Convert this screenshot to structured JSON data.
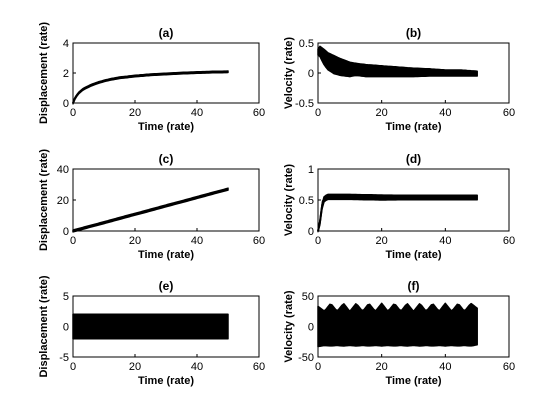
{
  "chart_data": [
    {
      "type": "line",
      "title": "(a)",
      "xlabel": "Time (rate)",
      "ylabel": "Displacement (rate)",
      "xlim": [
        0,
        60
      ],
      "ylim": [
        0,
        4
      ],
      "xticks": [
        "0",
        "20",
        "40",
        "60"
      ],
      "yticks": [
        "0",
        "2",
        "4"
      ],
      "grid": false,
      "series": [
        {
          "x": [
            0,
            0.5,
            1,
            2,
            3,
            4,
            5,
            6,
            8,
            10,
            12,
            15,
            20,
            25,
            30,
            35,
            40,
            45,
            50
          ],
          "y": [
            0,
            0.25,
            0.45,
            0.7,
            0.88,
            1.0,
            1.1,
            1.2,
            1.35,
            1.47,
            1.57,
            1.68,
            1.8,
            1.88,
            1.94,
            1.99,
            2.03,
            2.06,
            2.08
          ],
          "band": 0.05
        }
      ]
    },
    {
      "type": "line",
      "title": "(b)",
      "xlabel": "Time (rate)",
      "ylabel": "Velocity (rate)",
      "xlim": [
        0,
        60
      ],
      "ylim": [
        -0.5,
        0.5
      ],
      "xticks": [
        "0",
        "20",
        "40",
        "60"
      ],
      "yticks": [
        "-0.5",
        "0",
        "0.5"
      ],
      "grid": false,
      "series": [
        {
          "x": [
            0,
            0.5,
            1,
            2,
            3,
            5,
            7,
            10,
            12,
            15,
            20,
            25,
            30,
            35,
            40,
            45,
            50
          ],
          "y": [
            0.35,
            0.37,
            0.33,
            0.26,
            0.2,
            0.14,
            0.1,
            0.06,
            0.06,
            0.04,
            0.03,
            0.02,
            0.01,
            0.01,
            0.0,
            0.0,
            -0.01
          ],
          "band": [
            0.05,
            0.08,
            0.1,
            0.13,
            0.14,
            0.15,
            0.14,
            0.12,
            0.1,
            0.1,
            0.09,
            0.08,
            0.07,
            0.06,
            0.05,
            0.05,
            0.04
          ]
        }
      ]
    },
    {
      "type": "line",
      "title": "(c)",
      "xlabel": "Time (rate)",
      "ylabel": "Displacement (rate)",
      "xlim": [
        0,
        60
      ],
      "ylim": [
        0,
        40
      ],
      "xticks": [
        "0",
        "20",
        "40",
        "60"
      ],
      "yticks": [
        "0",
        "20",
        "40"
      ],
      "grid": false,
      "series": [
        {
          "x": [
            0,
            10,
            20,
            30,
            40,
            50
          ],
          "y": [
            0,
            5.4,
            10.8,
            16.2,
            21.6,
            27
          ],
          "band": 0.6
        }
      ]
    },
    {
      "type": "line",
      "title": "(d)",
      "xlabel": "Time (rate)",
      "ylabel": "Velocity (rate)",
      "xlim": [
        0,
        60
      ],
      "ylim": [
        0,
        1
      ],
      "xticks": [
        "0",
        "20",
        "40",
        "60"
      ],
      "yticks": [
        "0",
        "0.5",
        "1"
      ],
      "grid": false,
      "series": [
        {
          "x": [
            0,
            0.5,
            1,
            1.5,
            2,
            3,
            5,
            10,
            20,
            30,
            40,
            50
          ],
          "y": [
            0,
            0.1,
            0.3,
            0.48,
            0.52,
            0.55,
            0.55,
            0.55,
            0.54,
            0.54,
            0.54,
            0.54
          ],
          "band": [
            0.01,
            0.02,
            0.03,
            0.04,
            0.04,
            0.04,
            0.04,
            0.04,
            0.04,
            0.035,
            0.035,
            0.035
          ]
        }
      ]
    },
    {
      "type": "line",
      "title": "(e)",
      "xlabel": "Time (rate)",
      "ylabel": "Displacement (rate)",
      "xlim": [
        0,
        60
      ],
      "ylim": [
        -5,
        5
      ],
      "xticks": [
        "0",
        "20",
        "40",
        "60"
      ],
      "yticks": [
        "-5",
        "0",
        "5"
      ],
      "grid": false,
      "series": [
        {
          "x": [
            0,
            50
          ],
          "y": [
            0,
            0
          ],
          "band": 2
        }
      ]
    },
    {
      "type": "line",
      "title": "(f)",
      "xlabel": "Time (rate)",
      "ylabel": "Velocity (rate)",
      "xlim": [
        0,
        60
      ],
      "ylim": [
        -50,
        50
      ],
      "xticks": [
        "0",
        "20",
        "40",
        "60"
      ],
      "yticks": [
        "-50",
        "0",
        "50"
      ],
      "grid": false,
      "series": [
        {
          "x": [
            0,
            2,
            4,
            6,
            8,
            10,
            12,
            14,
            16,
            18,
            20,
            22,
            24,
            26,
            28,
            30,
            32,
            34,
            36,
            38,
            40,
            42,
            44,
            46,
            48,
            50
          ],
          "y": [
            0,
            -3,
            3,
            -3,
            3,
            -3,
            3,
            -3,
            3,
            -3,
            3,
            -3,
            3,
            -3,
            3,
            -3,
            3,
            -3,
            3,
            -3,
            3,
            -3,
            3,
            -3,
            3,
            0
          ],
          "band": [
            33,
            28,
            35,
            28,
            35,
            28,
            35,
            28,
            35,
            28,
            35,
            28,
            35,
            28,
            35,
            28,
            35,
            28,
            35,
            28,
            35,
            28,
            35,
            28,
            35,
            30
          ]
        }
      ]
    }
  ]
}
